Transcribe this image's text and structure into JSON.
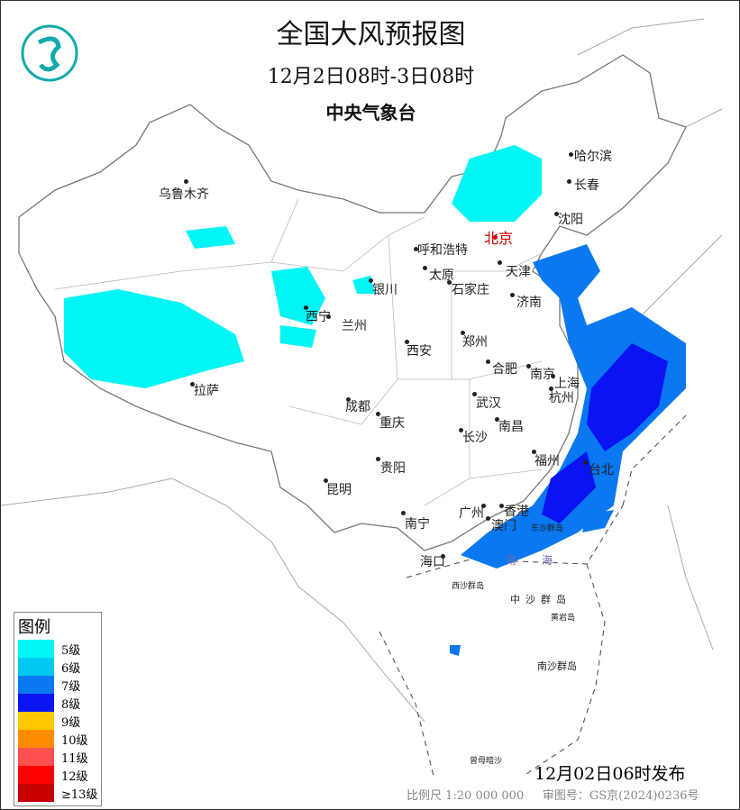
{
  "title": "全国大风预报图",
  "period": "12月2日08时-3日08时",
  "agency": "中央气象台",
  "issue_time": "12月02日06时发布",
  "scale": "比例尺 1:20 000 000",
  "approval": "审图号：GS京(2024)0236号",
  "legend": {
    "title": "图例",
    "items": [
      {
        "label": "5级",
        "color": "#00f5f5"
      },
      {
        "label": "6级",
        "color": "#00c8f0"
      },
      {
        "label": "7级",
        "color": "#0a78f0"
      },
      {
        "label": "8级",
        "color": "#0a14f0"
      },
      {
        "label": "9级",
        "color": "#ffc800"
      },
      {
        "label": "10级",
        "color": "#ff8c00"
      },
      {
        "label": "11级",
        "color": "#ff5050"
      },
      {
        "label": "12级",
        "color": "#ff0000"
      },
      {
        "label": "≥13级",
        "color": "#c80000"
      }
    ]
  },
  "cities": [
    "乌鲁木齐",
    "哈尔滨",
    "长春",
    "沈阳",
    "北京",
    "呼和浩特",
    "天津",
    "银川",
    "太原",
    "石家庄",
    "济南",
    "西宁",
    "兰州",
    "郑州",
    "西安",
    "合肥",
    "南京",
    "上海",
    "拉萨",
    "成都",
    "武汉",
    "杭州",
    "重庆",
    "南昌",
    "长沙",
    "福州",
    "台北",
    "贵阳",
    "昆明",
    "广州",
    "香港",
    "澳门",
    "南宁",
    "海口"
  ],
  "sea_labels": [
    "南",
    "海",
    "东沙群岛",
    "西沙群岛",
    "中沙群岛",
    "黄岩岛",
    "南沙群岛",
    "曾母暗沙"
  ]
}
